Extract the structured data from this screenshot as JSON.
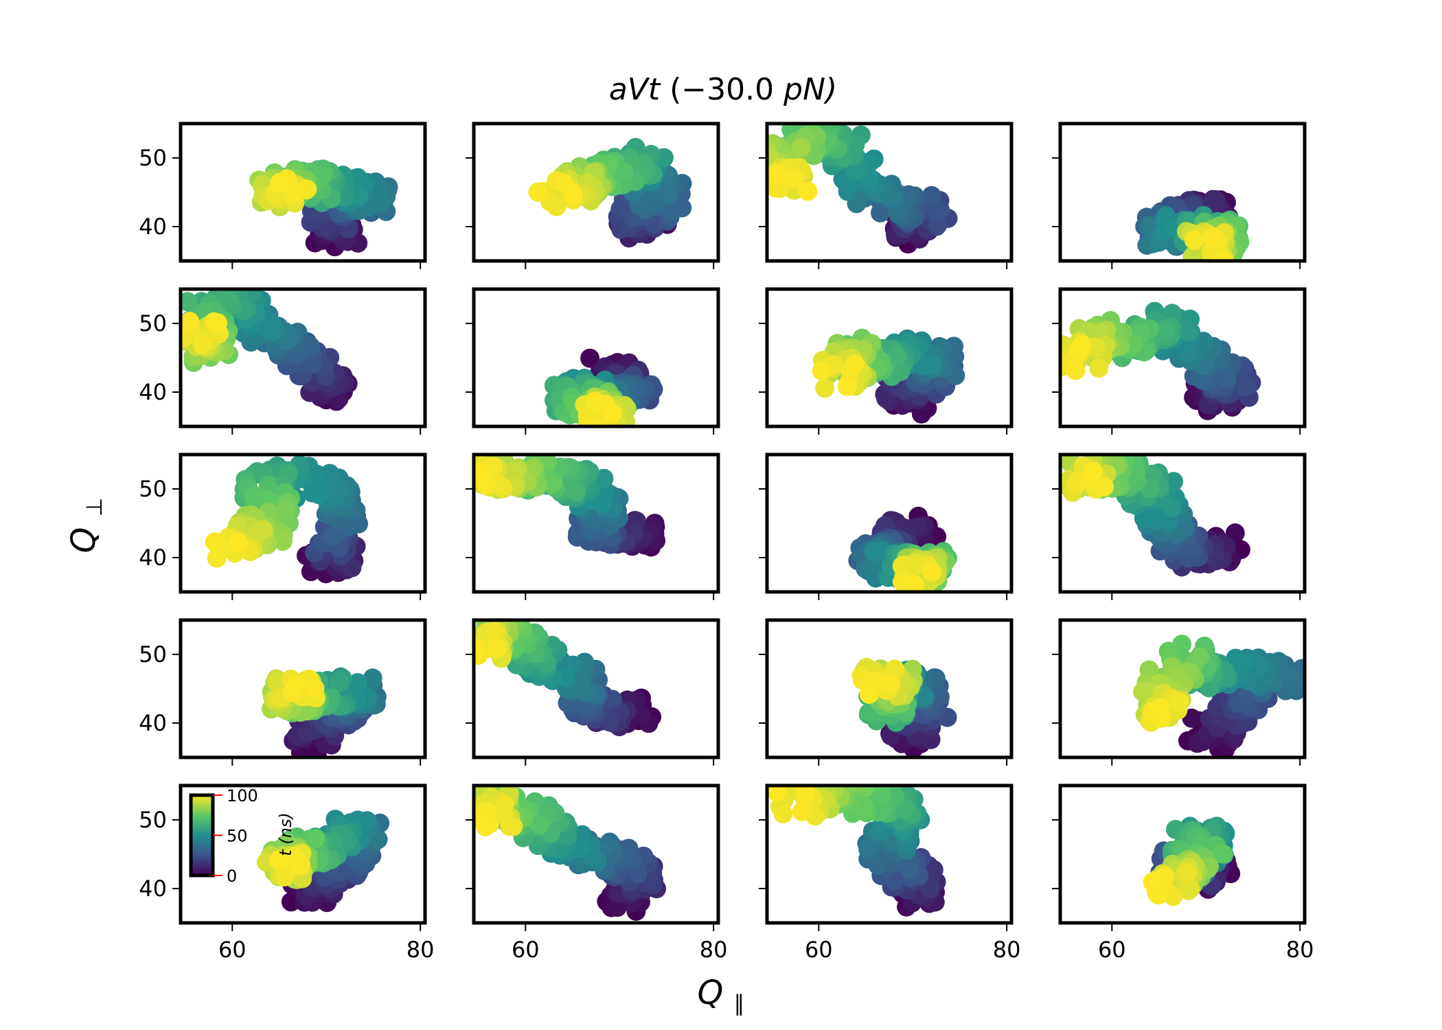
{
  "figure": {
    "title_name": "aVt",
    "title_value": "(−30.0",
    "title_unit": "pN)",
    "xlabel_main": "Q",
    "xlabel_sub": "∥",
    "ylabel_main": "Q",
    "ylabel_sub": "⊥"
  },
  "colorbar": {
    "label": "t (ns)",
    "ticks": [
      0,
      50,
      100
    ],
    "tick_labels": [
      "0",
      "50",
      "100"
    ],
    "range": [
      0,
      100
    ],
    "tick_color": "#ff0000",
    "colormap": "viridis",
    "colors": [
      "#440154",
      "#3b528b",
      "#21908d",
      "#5dc963",
      "#fde725"
    ]
  },
  "chart_data": {
    "type": "scatter",
    "layout": {
      "rows": 5,
      "cols": 4
    },
    "xlim": [
      54.5,
      80.5
    ],
    "ylim": [
      35,
      55
    ],
    "xticks": [
      60,
      80
    ],
    "xtick_labels": [
      "60",
      "80"
    ],
    "yticks": [
      40,
      50
    ],
    "ytick_labels": [
      "40",
      "50"
    ],
    "color_by": "t (ns)",
    "panels": [
      {
        "path": [
          [
            70.5,
            38
          ],
          [
            72,
            40
          ],
          [
            70,
            42
          ],
          [
            74,
            44
          ],
          [
            75,
            44
          ],
          [
            72,
            46
          ],
          [
            69,
            45.5
          ],
          [
            68,
            46.5
          ],
          [
            66,
            46
          ],
          [
            64,
            44.5
          ],
          [
            67,
            45
          ]
        ]
      },
      {
        "path": [
          [
            74,
            42
          ],
          [
            71,
            40
          ],
          [
            72,
            42
          ],
          [
            75,
            44
          ],
          [
            72,
            47
          ],
          [
            73,
            50
          ],
          [
            70,
            48
          ],
          [
            67,
            47
          ],
          [
            66,
            46
          ],
          [
            63,
            44.5
          ]
        ]
      },
      {
        "path": [
          [
            70,
            39
          ],
          [
            70,
            41
          ],
          [
            72,
            42
          ],
          [
            68,
            43
          ],
          [
            65,
            46
          ],
          [
            63,
            51
          ],
          [
            60,
            53
          ],
          [
            58,
            52
          ],
          [
            56,
            49
          ],
          [
            57,
            46
          ]
        ]
      },
      {
        "path": [
          [
            72,
            42
          ],
          [
            69,
            42
          ],
          [
            66,
            41
          ],
          [
            65,
            39
          ],
          [
            68,
            40
          ],
          [
            71,
            39
          ],
          [
            72,
            38.5
          ],
          [
            70,
            37.5
          ],
          [
            70,
            37
          ]
        ]
      },
      {
        "path": [
          [
            71,
            40
          ],
          [
            70,
            42
          ],
          [
            68,
            44
          ],
          [
            66,
            47
          ],
          [
            63,
            50
          ],
          [
            60,
            53
          ],
          [
            57,
            51
          ],
          [
            58,
            46
          ],
          [
            56,
            48
          ],
          [
            57,
            49
          ]
        ]
      },
      {
        "path": [
          [
            68,
            43
          ],
          [
            71,
            42
          ],
          [
            72,
            40
          ],
          [
            69,
            39
          ],
          [
            66,
            40
          ],
          [
            65,
            39
          ],
          [
            67,
            38
          ],
          [
            69,
            37.5
          ],
          [
            68,
            37
          ]
        ]
      },
      {
        "path": [
          [
            70,
            38
          ],
          [
            69,
            41
          ],
          [
            71,
            42
          ],
          [
            73,
            44
          ],
          [
            71,
            46
          ],
          [
            68,
            45
          ],
          [
            66,
            44
          ],
          [
            64,
            46
          ],
          [
            63,
            44
          ],
          [
            62,
            42
          ]
        ]
      },
      {
        "path": [
          [
            70,
            39
          ],
          [
            72,
            40
          ],
          [
            73,
            42
          ],
          [
            70,
            44
          ],
          [
            68,
            47
          ],
          [
            66,
            50
          ],
          [
            63,
            47
          ],
          [
            60,
            49
          ],
          [
            58,
            47
          ],
          [
            56,
            45
          ]
        ]
      },
      {
        "path": [
          [
            69,
            39
          ],
          [
            72,
            40
          ],
          [
            70,
            42
          ],
          [
            73,
            46
          ],
          [
            70,
            50
          ],
          [
            65,
            52
          ],
          [
            63,
            49
          ],
          [
            65,
            46
          ],
          [
            62,
            43
          ],
          [
            60,
            41.5
          ]
        ]
      },
      {
        "path": [
          [
            73,
            43
          ],
          [
            70,
            44
          ],
          [
            67,
            44
          ],
          [
            68,
            47
          ],
          [
            67,
            50
          ],
          [
            64,
            51
          ],
          [
            61,
            52
          ],
          [
            58,
            52
          ],
          [
            55,
            52
          ]
        ]
      },
      {
        "path": [
          [
            71,
            44
          ],
          [
            68,
            43
          ],
          [
            66,
            41
          ],
          [
            67,
            39
          ],
          [
            70,
            38.5
          ],
          [
            72,
            39
          ],
          [
            71,
            38
          ],
          [
            70,
            37.5
          ]
        ]
      },
      {
        "path": [
          [
            72,
            42
          ],
          [
            70,
            40
          ],
          [
            67,
            42
          ],
          [
            66,
            45
          ],
          [
            65,
            48
          ],
          [
            63,
            52
          ],
          [
            60,
            52
          ],
          [
            57,
            52
          ],
          [
            58,
            51
          ]
        ]
      },
      {
        "path": [
          [
            68,
            37
          ],
          [
            69,
            40
          ],
          [
            72,
            42
          ],
          [
            74,
            44
          ],
          [
            72,
            45
          ],
          [
            69,
            44
          ],
          [
            67,
            43
          ],
          [
            66,
            44
          ],
          [
            67,
            45
          ]
        ]
      },
      {
        "path": [
          [
            72,
            42
          ],
          [
            69,
            41
          ],
          [
            67,
            43
          ],
          [
            66,
            46
          ],
          [
            62,
            48
          ],
          [
            60,
            51
          ],
          [
            58,
            53
          ],
          [
            56,
            52
          ],
          [
            55,
            51
          ]
        ]
      },
      {
        "path": [
          [
            69,
            38
          ],
          [
            70,
            40
          ],
          [
            72,
            43
          ],
          [
            70,
            45
          ],
          [
            69,
            46
          ],
          [
            67,
            42
          ],
          [
            68,
            44
          ],
          [
            68,
            46
          ],
          [
            66,
            46
          ]
        ]
      },
      {
        "path": [
          [
            70,
            38
          ],
          [
            72,
            41
          ],
          [
            75,
            44
          ],
          [
            79,
            47
          ],
          [
            72,
            48
          ],
          [
            69,
            47
          ],
          [
            68,
            50
          ],
          [
            65,
            44
          ],
          [
            66,
            41
          ]
        ]
      },
      {
        "path": [
          [
            68,
            39
          ],
          [
            70,
            41
          ],
          [
            72,
            44
          ],
          [
            74,
            48
          ],
          [
            72,
            48
          ],
          [
            69,
            45
          ],
          [
            67,
            46
          ],
          [
            65,
            43
          ],
          [
            66,
            44
          ]
        ]
      },
      {
        "path": [
          [
            70,
            38.5
          ],
          [
            72,
            41
          ],
          [
            71,
            44
          ],
          [
            67,
            45
          ],
          [
            64,
            47
          ],
          [
            62,
            49
          ],
          [
            59,
            52
          ],
          [
            56,
            53
          ],
          [
            57,
            50
          ]
        ]
      },
      {
        "path": [
          [
            70,
            38
          ],
          [
            71,
            41
          ],
          [
            69,
            43
          ],
          [
            67,
            46
          ],
          [
            69,
            50
          ],
          [
            68,
            53
          ],
          [
            64,
            53
          ],
          [
            60,
            54
          ],
          [
            57,
            52
          ]
        ]
      },
      {
        "path": [
          [
            71,
            42
          ],
          [
            69,
            42
          ],
          [
            67,
            43
          ],
          [
            69,
            45
          ],
          [
            71,
            47
          ],
          [
            68,
            47
          ],
          [
            70,
            44
          ],
          [
            67,
            42
          ],
          [
            66,
            40
          ]
        ]
      }
    ]
  }
}
